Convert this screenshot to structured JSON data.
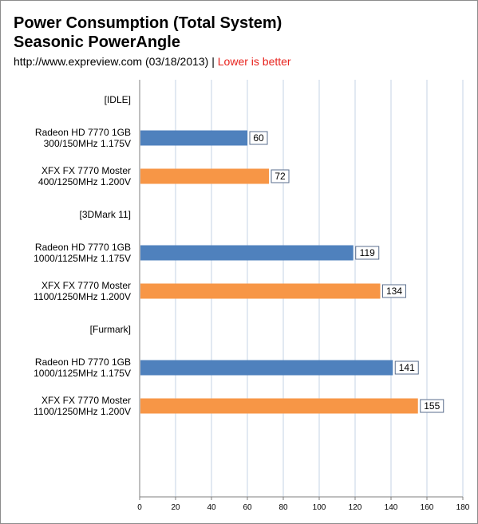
{
  "header": {
    "title_line1": "Power Consumption (Total System)",
    "title_line2": "Seasonic PowerAngle",
    "source": "http://www.expreview.com (03/18/2013)",
    "separator": " | ",
    "note": "Lower is better"
  },
  "colors": {
    "series_blue": "#4f81bd",
    "series_orange": "#f79646",
    "gridline": "#c6d3e6",
    "axis": "#7f7f7f"
  },
  "chart_data": {
    "type": "bar",
    "orientation": "horizontal",
    "title": "Power Consumption (Total System)",
    "subtitle": "Seasonic PowerAngle",
    "xlim": [
      0,
      180
    ],
    "xticks": [
      0,
      20,
      40,
      60,
      80,
      100,
      120,
      140,
      160,
      180
    ],
    "grid": true,
    "rows": [
      {
        "kind": "group",
        "lines": [
          "[IDLE]"
        ]
      },
      {
        "kind": "bar",
        "lines": [
          "Radeon HD 7770 1GB",
          "300/150MHz 1.175V"
        ],
        "value": 60,
        "color": "#4f81bd"
      },
      {
        "kind": "bar",
        "lines": [
          "XFX FX 7770 Moster",
          "400/1250MHz 1.200V"
        ],
        "value": 72,
        "color": "#f79646"
      },
      {
        "kind": "group",
        "lines": [
          "[3DMark 11]"
        ]
      },
      {
        "kind": "bar",
        "lines": [
          "Radeon HD 7770 1GB",
          "1000/1125MHz 1.175V"
        ],
        "value": 119,
        "color": "#4f81bd"
      },
      {
        "kind": "bar",
        "lines": [
          "XFX FX 7770 Moster",
          "1100/1250MHz 1.200V"
        ],
        "value": 134,
        "color": "#f79646"
      },
      {
        "kind": "group",
        "lines": [
          "[Furmark]"
        ]
      },
      {
        "kind": "bar",
        "lines": [
          "Radeon HD 7770 1GB",
          "1000/1125MHz 1.175V"
        ],
        "value": 141,
        "color": "#4f81bd"
      },
      {
        "kind": "bar",
        "lines": [
          "XFX FX 7770 Moster",
          "1100/1250MHz 1.200V"
        ],
        "value": 155,
        "color": "#f79646"
      }
    ]
  }
}
